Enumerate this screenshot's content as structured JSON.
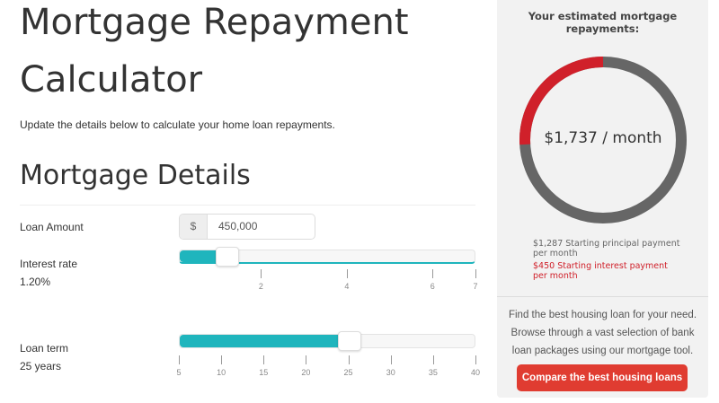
{
  "title_line1": "Mortgage Repayment",
  "title_line2": "Calculator",
  "subtitle": "Update the details below to calculate your home loan repayments.",
  "section_title": "Mortgage Details",
  "loan_amount": {
    "label": "Loan Amount",
    "prefix": "$",
    "value": "450,000"
  },
  "interest_rate": {
    "label": "Interest rate",
    "value_text": "1.20%",
    "value": 1.2,
    "min": 0,
    "max": 7,
    "ticks": [
      "2",
      "4",
      "6",
      "7"
    ],
    "tick_values": [
      2,
      4,
      6,
      7
    ]
  },
  "loan_term": {
    "label": "Loan term",
    "value_text": "25 years",
    "value": 25,
    "min": 5,
    "max": 40,
    "ticks": [
      "5",
      "10",
      "15",
      "20",
      "25",
      "30",
      "35",
      "40"
    ]
  },
  "result": {
    "heading": "Your estimated mortgage repayments:",
    "monthly": "$1,737 / month",
    "principal": 1287,
    "interest": 450,
    "principal_text": "$1,287 Starting principal payment per month",
    "interest_text": "$450 Starting interest payment per month",
    "colors": {
      "principal": "#666666",
      "interest": "#d0202a",
      "accent": "#1fb5bd",
      "button": "#e03c31"
    }
  },
  "promo": {
    "text": "Find the best housing loan for your need. Browse through a vast selection of bank loan packages using our mortgage tool.",
    "button": "Compare the best housing loans"
  }
}
